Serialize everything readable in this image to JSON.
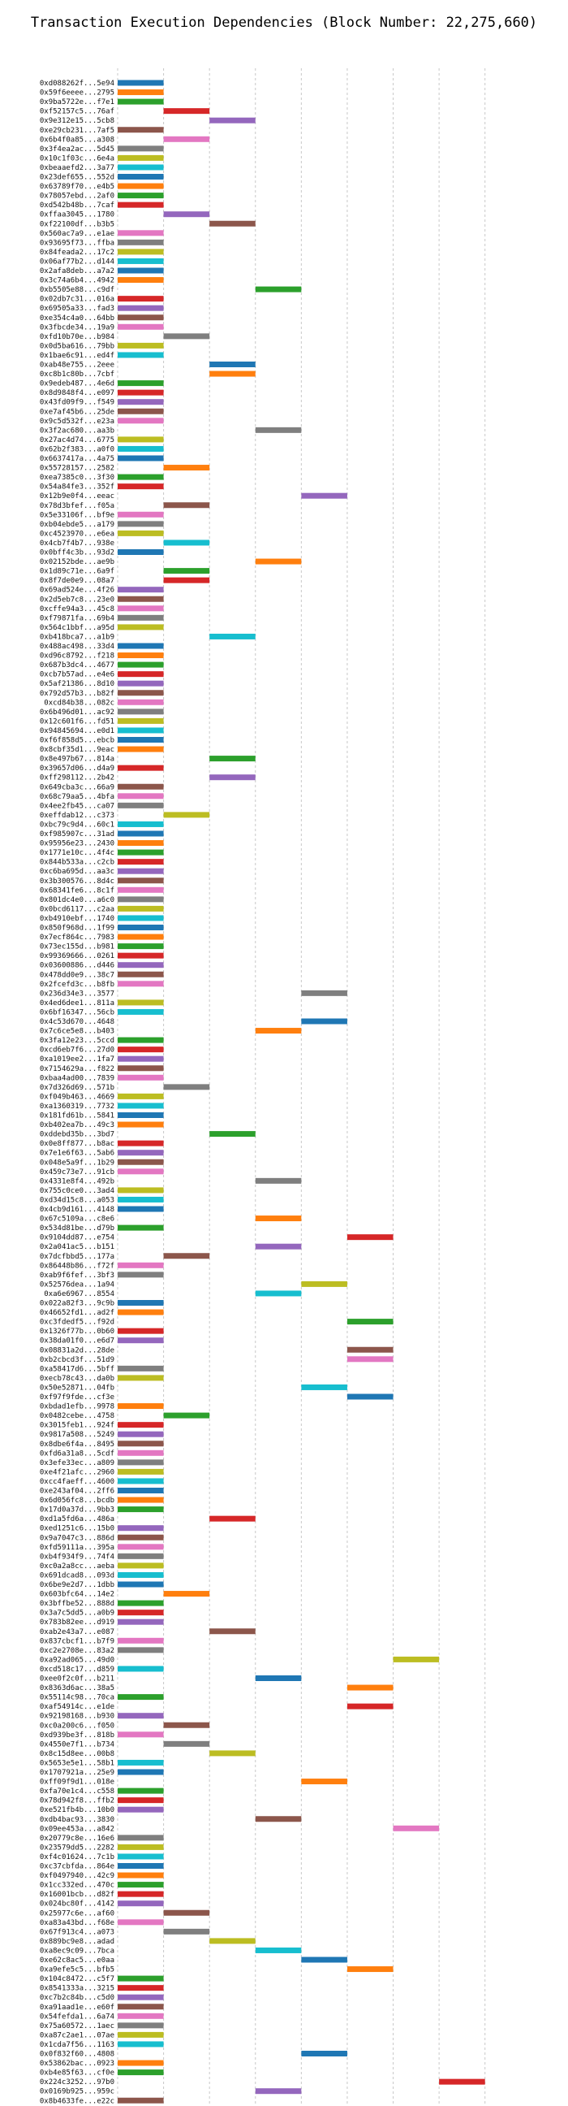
{
  "chart_data": {
    "type": "gantt",
    "title": "Transaction Execution Dependencies (Block Number: 22,275,660)",
    "xlim": [
      0,
      8.5
    ],
    "xticks": [
      0,
      2,
      4,
      6,
      8
    ],
    "grid": "vertical dashed",
    "palette": [
      "#1f77b4",
      "#ff7f0e",
      "#2ca02c",
      "#d62728",
      "#9467bd",
      "#8c564b",
      "#e377c2",
      "#7f7f7f",
      "#bcbd22",
      "#17becf"
    ],
    "transactions": [
      [
        "0xd088262f...5e94",
        0,
        1,
        0
      ],
      [
        "0x59f6eeee...2795",
        0,
        1,
        1
      ],
      [
        "0x9ba5722e...f7e1",
        0,
        1,
        2
      ],
      [
        "0xf52157c5...76af",
        1,
        2,
        3
      ],
      [
        "0x9e312e15...5cb8",
        2,
        3,
        4
      ],
      [
        "0xe29cb231...7af5",
        0,
        1,
        5
      ],
      [
        "0x6b4f0a85...a308",
        1,
        2,
        6
      ],
      [
        "0x3f4ea2ac...5d45",
        0,
        1,
        7
      ],
      [
        "0x10c1f03c...6e4a",
        0,
        1,
        8
      ],
      [
        "0xbeaaefd2...3a77",
        0,
        1,
        9
      ],
      [
        "0x23def655...552d",
        0,
        1,
        0
      ],
      [
        "0x63789f70...e4b5",
        0,
        1,
        1
      ],
      [
        "0x78057ebd...2af0",
        0,
        1,
        2
      ],
      [
        "0xd542b48b...7caf",
        0,
        1,
        3
      ],
      [
        "0xffaa3045...1780",
        1,
        2,
        4
      ],
      [
        "0xf22100df...b3b5",
        2,
        3,
        5
      ],
      [
        "0x560ac7a9...e1ae",
        0,
        1,
        6
      ],
      [
        "0x93695f73...ffba",
        0,
        1,
        7
      ],
      [
        "0x84feada2...17c2",
        0,
        1,
        8
      ],
      [
        "0x06af77b2...d144",
        0,
        1,
        9
      ],
      [
        "0x2afa8deb...a7a2",
        0,
        1,
        0
      ],
      [
        "0x3c74a6b4...4942",
        0,
        1,
        1
      ],
      [
        "0xb5505e88...c9df",
        3,
        4,
        2
      ],
      [
        "0x02db7c31...016a",
        0,
        1,
        3
      ],
      [
        "0x69505a33...fad3",
        0,
        1,
        4
      ],
      [
        "0xe354c4a0...64bb",
        0,
        1,
        5
      ],
      [
        "0x3fbcde34...19a9",
        0,
        1,
        6
      ],
      [
        "0xfd10b70e...b984",
        1,
        2,
        7
      ],
      [
        "0x0d5ba616...79bb",
        0,
        1,
        8
      ],
      [
        "0x1bae6c91...ed4f",
        0,
        1,
        9
      ],
      [
        "0xab48e755...2eee",
        2,
        3,
        0
      ],
      [
        "0xc8b1c80b...7cbf",
        2,
        3,
        1
      ],
      [
        "0x9edeb487...4e6d",
        0,
        1,
        2
      ],
      [
        "0x8d9848f4...e097",
        0,
        1,
        3
      ],
      [
        "0x43fd09f9...f549",
        0,
        1,
        4
      ],
      [
        "0xe7af45b6...25de",
        0,
        1,
        5
      ],
      [
        "0x9c5d532f...e23a",
        0,
        1,
        6
      ],
      [
        "0x3f2ac680...aa3b",
        3,
        4,
        7
      ],
      [
        "0x27ac4d74...6775",
        0,
        1,
        8
      ],
      [
        "0x62b2f383...a0f0",
        0,
        1,
        9
      ],
      [
        "0x6637417a...4a75",
        0,
        1,
        0
      ],
      [
        "0x55728157...2582",
        1,
        2,
        1
      ],
      [
        "0xea7385c0...3f30",
        0,
        1,
        2
      ],
      [
        "0x54a84fe3...352f",
        0,
        1,
        3
      ],
      [
        "0x12b9e0f4...eeac",
        4,
        5,
        4
      ],
      [
        "0x78d3bfef...f05a",
        1,
        2,
        5
      ],
      [
        "0x5e33106f...bf9e",
        0,
        1,
        6
      ],
      [
        "0xb04ebde5...a179",
        0,
        1,
        7
      ],
      [
        "0xc4523970...e6ea",
        0,
        1,
        8
      ],
      [
        "0x4cb7f4b7...938e",
        1,
        2,
        9
      ],
      [
        "0x0bff4c3b...93d2",
        0,
        1,
        0
      ],
      [
        "0x02152bde...ae9b",
        3,
        4,
        1
      ],
      [
        "0x1d89c71e...6a9f",
        1,
        2,
        2
      ],
      [
        "0x8f7de0e9...08a7",
        1,
        2,
        3
      ],
      [
        "0x69ad524e...4f26",
        0,
        1,
        4
      ],
      [
        "0x2d5eb7c8...23e0",
        0,
        1,
        5
      ],
      [
        "0xcffe94a3...45c8",
        0,
        1,
        6
      ],
      [
        "0xf79871fa...69b4",
        0,
        1,
        7
      ],
      [
        "0x564c1bbf...a95d",
        0,
        1,
        8
      ],
      [
        "0xb418bca7...a1b9",
        2,
        3,
        9
      ],
      [
        "0x488ac498...33d4",
        0,
        1,
        0
      ],
      [
        "0xd96c8792...f218",
        0,
        1,
        1
      ],
      [
        "0x687b3dc4...4677",
        0,
        1,
        2
      ],
      [
        "0xcb7b57ad...e4e6",
        0,
        1,
        3
      ],
      [
        "0x5af21386...8d10",
        0,
        1,
        4
      ],
      [
        "0x792d57b3...b82f",
        0,
        1,
        5
      ],
      [
        "0xcd84b38...082c",
        0,
        1,
        6
      ],
      [
        "0x6b496d01...ac92",
        0,
        1,
        7
      ],
      [
        "0x12c601f6...fd51",
        0,
        1,
        8
      ],
      [
        "0x94845694...e0d1",
        0,
        1,
        9
      ],
      [
        "0xf6f858d5...ebcb",
        0,
        1,
        0
      ],
      [
        "0x8cbf35d1...9eac",
        0,
        1,
        1
      ],
      [
        "0x8e497b67...814a",
        2,
        3,
        2
      ],
      [
        "0x39657d06...d4a9",
        0,
        1,
        3
      ],
      [
        "0xff298112...2b42",
        2,
        3,
        4
      ],
      [
        "0x649cba3c...66a9",
        0,
        1,
        5
      ],
      [
        "0x68c79aa5...4bfa",
        0,
        1,
        6
      ],
      [
        "0x4ee2fb45...ca07",
        0,
        1,
        7
      ],
      [
        "0xeffdab12...c373",
        1,
        2,
        8
      ],
      [
        "0xbc79c9d4...60c1",
        0,
        1,
        9
      ],
      [
        "0xf985907c...31ad",
        0,
        1,
        0
      ],
      [
        "0x95956e23...2430",
        0,
        1,
        1
      ],
      [
        "0x1771e10c...4f4c",
        0,
        1,
        2
      ],
      [
        "0x844b533a...c2cb",
        0,
        1,
        3
      ],
      [
        "0xc6ba695d...aa3c",
        0,
        1,
        4
      ],
      [
        "0x3b300576...8d4c",
        0,
        1,
        5
      ],
      [
        "0x68341fe6...8c1f",
        0,
        1,
        6
      ],
      [
        "0x801dc4e0...a6c0",
        0,
        1,
        7
      ],
      [
        "0x0bcd6117...c2aa",
        0,
        1,
        8
      ],
      [
        "0xb4910ebf...1740",
        0,
        1,
        9
      ],
      [
        "0x850f968d...1f99",
        0,
        1,
        0
      ],
      [
        "0x7ecf864c...7983",
        0,
        1,
        1
      ],
      [
        "0x73ec155d...b981",
        0,
        1,
        2
      ],
      [
        "0x99369666...0261",
        0,
        1,
        3
      ],
      [
        "0x03600886...d446",
        0,
        1,
        4
      ],
      [
        "0x478dd0e9...38c7",
        0,
        1,
        5
      ],
      [
        "0x2fcefd3c...b8fb",
        0,
        1,
        6
      ],
      [
        "0x236d34e3...3577",
        4,
        5,
        7
      ],
      [
        "0x4ed6dee1...811a",
        0,
        1,
        8
      ],
      [
        "0x6bf16347...56cb",
        0,
        1,
        9
      ],
      [
        "0x4c53d670...4648",
        4,
        5,
        0
      ],
      [
        "0x7c6ce5e8...b403",
        3,
        4,
        1
      ],
      [
        "0x3fa12e23...5ccd",
        0,
        1,
        2
      ],
      [
        "0xcd6eb7f6...27d0",
        0,
        1,
        3
      ],
      [
        "0xa1019ee2...1fa7",
        0,
        1,
        4
      ],
      [
        "0x7154629a...f822",
        0,
        1,
        5
      ],
      [
        "0xbaa4ad00...7839",
        0,
        1,
        6
      ],
      [
        "0x7d326d69...571b",
        1,
        2,
        7
      ],
      [
        "0xf049b463...4669",
        0,
        1,
        8
      ],
      [
        "0xa1360319...7732",
        0,
        1,
        9
      ],
      [
        "0x181fd61b...5841",
        0,
        1,
        0
      ],
      [
        "0xb402ea7b...49c3",
        0,
        1,
        1
      ],
      [
        "0xddebd35b...3bd7",
        2,
        3,
        2
      ],
      [
        "0x0e8ff877...b8ac",
        0,
        1,
        3
      ],
      [
        "0x7e1e6f63...5ab6",
        0,
        1,
        4
      ],
      [
        "0x048e5a9f...1b29",
        0,
        1,
        5
      ],
      [
        "0x459c73e7...91cb",
        0,
        1,
        6
      ],
      [
        "0x4331e8f4...492b",
        3,
        4,
        7
      ],
      [
        "0x755c0ce0...3ad4",
        0,
        1,
        8
      ],
      [
        "0xd34d15c8...a053",
        0,
        1,
        9
      ],
      [
        "0x4cb9d161...4148",
        0,
        1,
        0
      ],
      [
        "0x67c5109a...c8e6",
        3,
        4,
        1
      ],
      [
        "0x534d81be...d79b",
        0,
        1,
        2
      ],
      [
        "0x9104dd87...e754",
        5,
        6,
        3
      ],
      [
        "0x2a041ac5...b151",
        3,
        4,
        4
      ],
      [
        "0x7dcfbbd5...177a",
        1,
        2,
        5
      ],
      [
        "0x86448b86...f72f",
        0,
        1,
        6
      ],
      [
        "0xab9f6fef...3bf3",
        0,
        1,
        7
      ],
      [
        "0x52576dea...1a94",
        4,
        5,
        8
      ],
      [
        "0xa6e6967...8554",
        3,
        4,
        9
      ],
      [
        "0x022a82f3...9c9b",
        0,
        1,
        0
      ],
      [
        "0x46652fd1...ad2f",
        0,
        1,
        1
      ],
      [
        "0xc3fdedf5...f92d",
        5,
        6,
        2
      ],
      [
        "0x1326f77b...0b60",
        0,
        1,
        3
      ],
      [
        "0x38da01f0...e6d7",
        0,
        1,
        4
      ],
      [
        "0x08831a2d...28de",
        5,
        6,
        5
      ],
      [
        "0xb2cbcd3f...51d9",
        5,
        6,
        6
      ],
      [
        "0xa58417d6...5bff",
        0,
        1,
        7
      ],
      [
        "0xecb78c43...da0b",
        0,
        1,
        8
      ],
      [
        "0x50e52871...04fb",
        4,
        5,
        9
      ],
      [
        "0xf97f9fde...cf3e",
        5,
        6,
        0
      ],
      [
        "0xbdad1efb...9978",
        0,
        1,
        1
      ],
      [
        "0x0482cebe...4758",
        1,
        2,
        2
      ],
      [
        "0x3015feb1...924f",
        0,
        1,
        3
      ],
      [
        "0x9817a508...5249",
        0,
        1,
        4
      ],
      [
        "0x8dbe6f4a...8495",
        0,
        1,
        5
      ],
      [
        "0xfd6a31a8...5cdf",
        0,
        1,
        6
      ],
      [
        "0x3efe33ec...a809",
        0,
        1,
        7
      ],
      [
        "0xe4f21afc...2960",
        0,
        1,
        8
      ],
      [
        "0xcc4faeff...4600",
        0,
        1,
        9
      ],
      [
        "0xe243af04...2ff6",
        0,
        1,
        0
      ],
      [
        "0x6d056fc8...bcdb",
        0,
        1,
        1
      ],
      [
        "0x17d0a37d...9bb3",
        0,
        1,
        2
      ],
      [
        "0xd1a5fd6a...486a",
        2,
        3,
        3
      ],
      [
        "0xed1251c6...15b0",
        0,
        1,
        4
      ],
      [
        "0x9a7047c3...886d",
        0,
        1,
        5
      ],
      [
        "0xfd59111a...395a",
        0,
        1,
        6
      ],
      [
        "0xb4f934f9...74f4",
        0,
        1,
        7
      ],
      [
        "0xc0a2a8cc...aeba",
        0,
        1,
        8
      ],
      [
        "0x691dcad8...093d",
        0,
        1,
        9
      ],
      [
        "0x6be9e2d7...1dbb",
        0,
        1,
        0
      ],
      [
        "0x603bfc64...14e2",
        1,
        2,
        1
      ],
      [
        "0x3bffbe52...888d",
        0,
        1,
        2
      ],
      [
        "0x3a7c5dd5...a0b9",
        0,
        1,
        3
      ],
      [
        "0x783b82ee...d919",
        0,
        1,
        4
      ],
      [
        "0xab2e43a7...e087",
        2,
        3,
        5
      ],
      [
        "0x837cbcf1...b7f9",
        0,
        1,
        6
      ],
      [
        "0xc2e2708e...83a2",
        0,
        1,
        7
      ],
      [
        "0xa92ad065...49d0",
        6,
        7,
        8
      ],
      [
        "0xcd518c17...d859",
        0,
        1,
        9
      ],
      [
        "0xee0f2c0f...b211",
        3,
        4,
        0
      ],
      [
        "0x8363d6ac...38a5",
        5,
        6,
        1
      ],
      [
        "0x55114c98...70ca",
        0,
        1,
        2
      ],
      [
        "0xaf54914c...e1de",
        5,
        6,
        3
      ],
      [
        "0x92198168...b930",
        0,
        1,
        4
      ],
      [
        "0xc0a200c6...f050",
        1,
        2,
        5
      ],
      [
        "0xd939be3f...818b",
        0,
        1,
        6
      ],
      [
        "0x4550e7f1...b734",
        1,
        2,
        7
      ],
      [
        "0x8c15d8ee...00b8",
        2,
        3,
        8
      ],
      [
        "0x5653e5e1...58b1",
        0,
        1,
        9
      ],
      [
        "0x1707921a...25e9",
        0,
        1,
        0
      ],
      [
        "0xff09f9d1...018e",
        4,
        5,
        1
      ],
      [
        "0xfa70e1c4...c558",
        0,
        1,
        2
      ],
      [
        "0x78d942f8...ffb2",
        0,
        1,
        3
      ],
      [
        "0xe521fb4b...10b0",
        0,
        1,
        4
      ],
      [
        "0xdb4bac93...3830",
        3,
        4,
        5
      ],
      [
        "0x09ee453a...a842",
        6,
        7,
        6
      ],
      [
        "0x20779c8e...16e6",
        0,
        1,
        7
      ],
      [
        "0x23579dd5...2282",
        0,
        1,
        8
      ],
      [
        "0xf4c01624...7c1b",
        0,
        1,
        9
      ],
      [
        "0xc37cbfda...864e",
        0,
        1,
        0
      ],
      [
        "0xf0497940...42c9",
        0,
        1,
        1
      ],
      [
        "0x1cc332ed...470c",
        0,
        1,
        2
      ],
      [
        "0x16001bcb...d82f",
        0,
        1,
        3
      ],
      [
        "0x024bc80f...4142",
        0,
        1,
        4
      ],
      [
        "0x25977c6e...af60",
        1,
        2,
        5
      ],
      [
        "0xa83a43bd...f68e",
        0,
        1,
        6
      ],
      [
        "0x67f913c4...a073",
        1,
        2,
        7
      ],
      [
        "0x889bc9e8...adad",
        2,
        3,
        8
      ],
      [
        "0xa8ec9c09...7bca",
        3,
        4,
        9
      ],
      [
        "0xe62c8ac5...e0aa",
        4,
        5,
        0
      ],
      [
        "0xa9efe5c5...bfb5",
        5,
        6,
        1
      ],
      [
        "0x104c8472...c5f7",
        0,
        1,
        2
      ],
      [
        "0x8541333a...3215",
        0,
        1,
        3
      ],
      [
        "0xc7b2c84b...c5d0",
        0,
        1,
        4
      ],
      [
        "0xa91aad1e...e60f",
        0,
        1,
        5
      ],
      [
        "0x54fefda1...6a74",
        0,
        1,
        6
      ],
      [
        "0x75a60572...1aec",
        0,
        1,
        7
      ],
      [
        "0xa87c2ae1...07ae",
        0,
        1,
        8
      ],
      [
        "0x1cda7f56...1163",
        0,
        1,
        9
      ],
      [
        "0x0f832f60...4808",
        4,
        5,
        0
      ],
      [
        "0x53862bac...0923",
        0,
        1,
        1
      ],
      [
        "0xb4e85f63...cf0e",
        0,
        1,
        2
      ],
      [
        "0x224c3252...97b0",
        7,
        8,
        3
      ],
      [
        "0x0169b925...959c",
        3,
        4,
        4
      ],
      [
        "0x8b4633fe...e22c",
        0,
        1,
        5
      ]
    ]
  }
}
